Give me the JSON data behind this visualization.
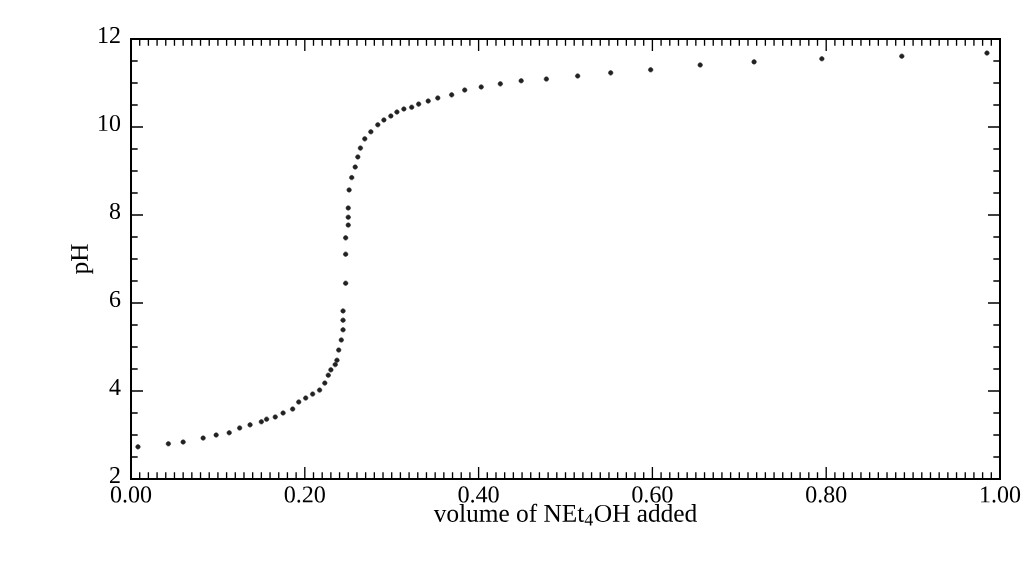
{
  "chart_data": {
    "type": "scatter",
    "xlabel": "volume of NEt$_{4}$OH added",
    "ylabel": "pH",
    "xlim": [
      0,
      1
    ],
    "ylim": [
      2,
      12
    ],
    "xticks": [
      {
        "value": 0,
        "label": "0.00"
      },
      {
        "value": 0.2,
        "label": "0.20"
      },
      {
        "value": 0.4,
        "label": "0.40"
      },
      {
        "value": 0.6,
        "label": "0.60"
      },
      {
        "value": 0.8,
        "label": "0.80"
      },
      {
        "value": 1,
        "label": "1.00"
      }
    ],
    "yticks": [
      2,
      4,
      6,
      8,
      10,
      12
    ],
    "marker": "circle",
    "grid": false,
    "series": [
      {
        "color": "#222222",
        "x": [
          0.008,
          0.043,
          0.06,
          0.083,
          0.098,
          0.113,
          0.125,
          0.137,
          0.15,
          0.156,
          0.166,
          0.175,
          0.186,
          0.193,
          0.201,
          0.209,
          0.217,
          0.223,
          0.227,
          0.23,
          0.235,
          0.237,
          0.239,
          0.242,
          0.244,
          0.244,
          0.244,
          0.247,
          0.247,
          0.247,
          0.25,
          0.25,
          0.25,
          0.251,
          0.254,
          0.258,
          0.261,
          0.264,
          0.269,
          0.276,
          0.284,
          0.291,
          0.299,
          0.306,
          0.314,
          0.323,
          0.331,
          0.342,
          0.353,
          0.369,
          0.384,
          0.403,
          0.425,
          0.449,
          0.478,
          0.514,
          0.552,
          0.598,
          0.655,
          0.717,
          0.795,
          0.887,
          0.985
        ],
        "values": [
          2.73,
          2.8,
          2.84,
          2.93,
          3.0,
          3.05,
          3.16,
          3.23,
          3.3,
          3.36,
          3.41,
          3.5,
          3.59,
          3.75,
          3.84,
          3.93,
          4.02,
          4.18,
          4.36,
          4.48,
          4.6,
          4.7,
          4.93,
          5.16,
          5.39,
          5.61,
          5.82,
          6.45,
          7.11,
          7.48,
          7.77,
          7.95,
          8.16,
          8.57,
          8.85,
          9.09,
          9.32,
          9.52,
          9.73,
          9.89,
          10.05,
          10.16,
          10.25,
          10.34,
          10.41,
          10.45,
          10.52,
          10.59,
          10.66,
          10.73,
          10.84,
          10.91,
          10.98,
          11.05,
          11.09,
          11.16,
          11.23,
          11.3,
          11.41,
          11.48,
          11.55,
          11.61,
          11.68
        ]
      }
    ]
  }
}
